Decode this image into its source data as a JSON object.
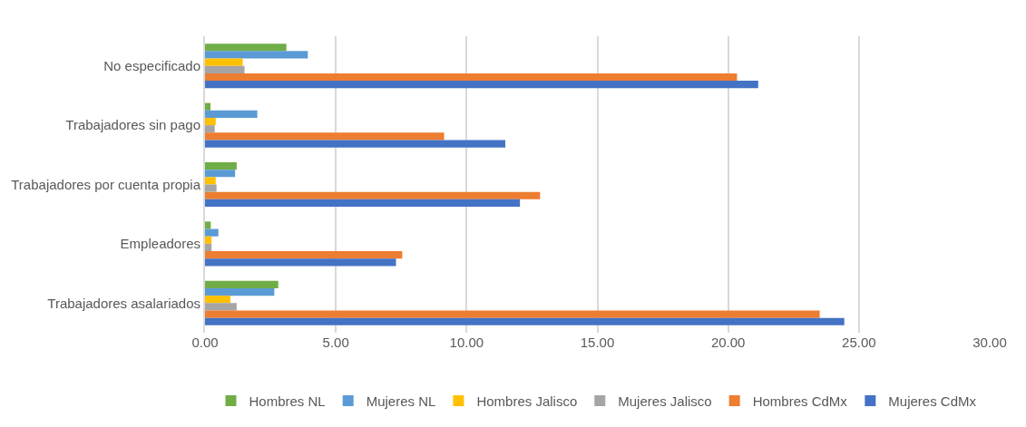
{
  "chart_data": {
    "type": "bar",
    "orientation": "horizontal",
    "categories": [
      "No especificado",
      "Trabajadores sin pago",
      "Trabajadores por cuenta propia",
      "Empleadores",
      "Trabajadores asalariados"
    ],
    "series": [
      {
        "name": "Hombres NL",
        "color": "#70ad47",
        "values": [
          3.11,
          0.21,
          1.21,
          0.22,
          2.8
        ]
      },
      {
        "name": "Mujeres NL",
        "color": "#5b9bd5",
        "values": [
          3.93,
          2.0,
          1.15,
          0.51,
          2.65
        ]
      },
      {
        "name": "Hombres Jalisco",
        "color": "#ffc000",
        "values": [
          1.44,
          0.41,
          0.41,
          0.25,
          0.97
        ]
      },
      {
        "name": "Mujeres Jalisco",
        "color": "#a5a5a5",
        "values": [
          1.51,
          0.37,
          0.44,
          0.25,
          1.21
        ]
      },
      {
        "name": "Hombres CdMx",
        "color": "#ed7d31",
        "values": [
          20.34,
          9.14,
          12.81,
          7.54,
          23.5
        ]
      },
      {
        "name": "Mujeres CdMx",
        "color": "#4472c4",
        "values": [
          21.15,
          11.48,
          12.04,
          7.3,
          24.44
        ]
      }
    ],
    "xlim": [
      0,
      30
    ],
    "xticks": [
      {
        "value": 0,
        "label": "0.00"
      },
      {
        "value": 5,
        "label": "5.00"
      },
      {
        "value": 10,
        "label": "10.00"
      },
      {
        "value": 15,
        "label": "15.00"
      },
      {
        "value": 20,
        "label": "20.00"
      },
      {
        "value": 25,
        "label": "25.00"
      },
      {
        "value": 30,
        "label": "30.00"
      }
    ],
    "grid": "x",
    "legend": "bottom"
  }
}
